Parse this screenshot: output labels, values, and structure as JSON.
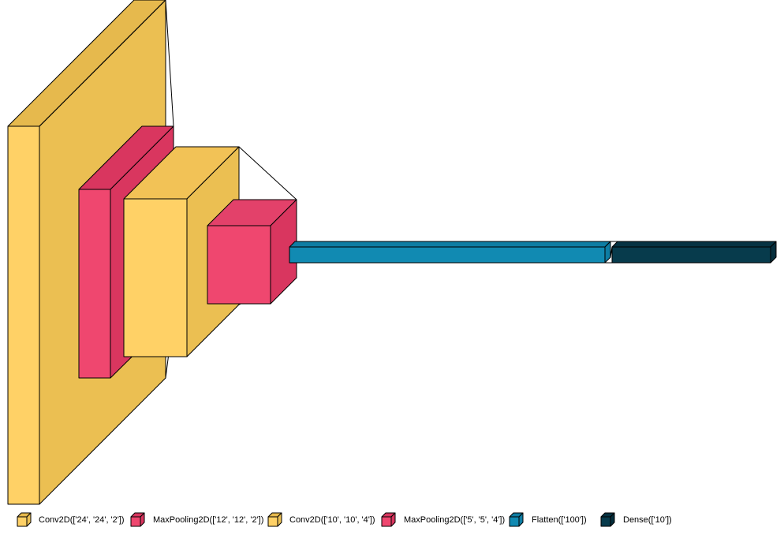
{
  "diagram": {
    "title": "",
    "layers": [
      {
        "id": "conv2d_1",
        "type": "Conv2D",
        "shape": "['24', '24', '2']",
        "color": "#ffd166"
      },
      {
        "id": "maxpool_1",
        "type": "MaxPooling2D",
        "shape": "['12', '12', '2']",
        "color": "#ef476f"
      },
      {
        "id": "conv2d_2",
        "type": "Conv2D",
        "shape": "['10', '10', '4']",
        "color": "#ffd166"
      },
      {
        "id": "maxpool_2",
        "type": "MaxPooling2D",
        "shape": "['5', '5', '4']",
        "color": "#ef476f"
      },
      {
        "id": "flatten",
        "type": "Flatten",
        "shape": "['100']",
        "color": "#118ab2"
      },
      {
        "id": "dense",
        "type": "Dense",
        "shape": "['10']",
        "color": "#073b4c"
      }
    ]
  },
  "legend": {
    "items": [
      {
        "label": "Conv2D(['24', '24', '2'])",
        "color": "#ffd166"
      },
      {
        "label": "MaxPooling2D(['12', '12', '2'])",
        "color": "#ef476f"
      },
      {
        "label": "Conv2D(['10', '10', '4'])",
        "color": "#ffd166"
      },
      {
        "label": "MaxPooling2D(['5', '5', '4'])",
        "color": "#ef476f"
      },
      {
        "label": "Flatten(['100'])",
        "color": "#118ab2"
      },
      {
        "label": "Dense(['10'])",
        "color": "#073b4c"
      }
    ]
  }
}
